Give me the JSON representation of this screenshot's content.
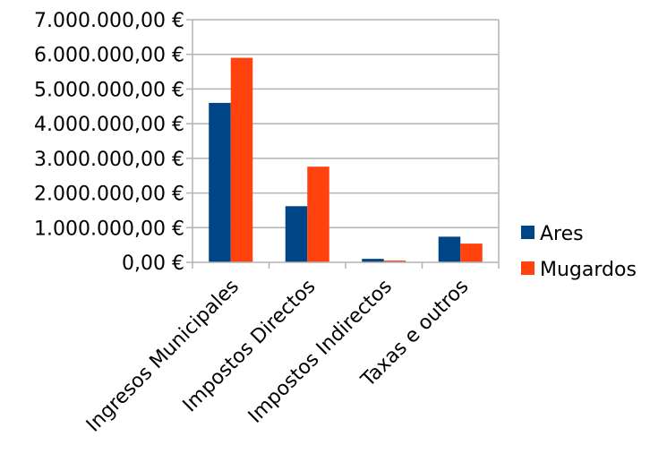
{
  "chart_data": {
    "type": "bar",
    "categories": [
      "Ingresos Municipales",
      "Impostos Directos",
      "Impostos Indirectos",
      "Taxas e outros"
    ],
    "series": [
      {
        "name": "Ares",
        "values": [
          4600000,
          1620000,
          100000,
          740000
        ],
        "color": "#004586"
      },
      {
        "name": "Mugardos",
        "values": [
          5900000,
          2760000,
          50000,
          540000
        ],
        "color": "#ff420e"
      }
    ],
    "yticks": [
      "0,00 €",
      "1.000.000,00 €",
      "2.000.000,00 €",
      "3.000.000,00 €",
      "4.000.000,00 €",
      "5.000.000,00 €",
      "6.000.000,00 €",
      "7.000.000,00 €"
    ],
    "ylim": [
      0,
      7000000
    ],
    "grid": true,
    "legend": "right",
    "title": "",
    "xlabel": "",
    "ylabel": ""
  }
}
